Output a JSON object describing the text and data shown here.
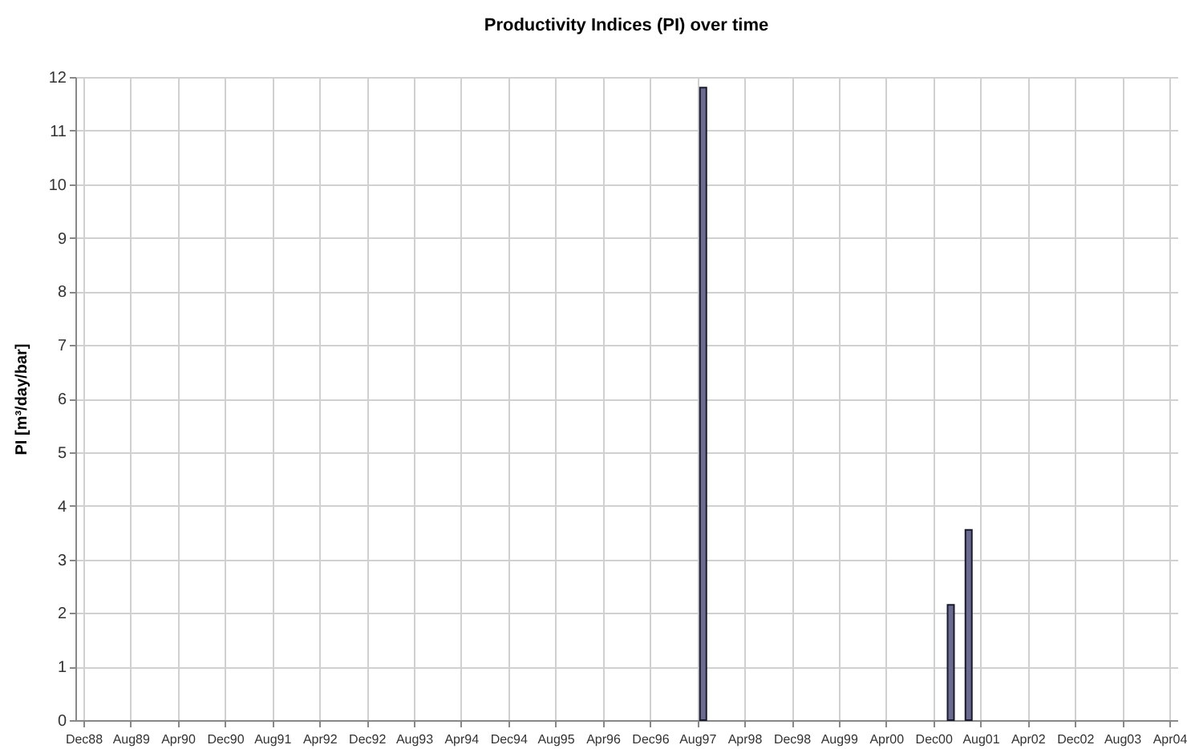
{
  "chart_data": {
    "type": "bar",
    "title": "Productivity Indices (PI) over time",
    "ylabel": "PI [m³/day/bar]",
    "x": [
      "1997-09",
      "2001-03",
      "2001-06"
    ],
    "values": [
      11.8,
      2.15,
      3.55
    ],
    "color": "#6b6b8f",
    "xlim": [
      "1988-12",
      "2004-04"
    ],
    "xticks": [
      {
        "value": "1988-12",
        "label": "Dec88"
      },
      {
        "value": "1989-08",
        "label": "Aug89"
      },
      {
        "value": "1990-04",
        "label": "Apr90"
      },
      {
        "value": "1990-12",
        "label": "Dec90"
      },
      {
        "value": "1991-08",
        "label": "Aug91"
      },
      {
        "value": "1992-04",
        "label": "Apr92"
      },
      {
        "value": "1992-12",
        "label": "Dec92"
      },
      {
        "value": "1993-08",
        "label": "Aug93"
      },
      {
        "value": "1994-04",
        "label": "Apr94"
      },
      {
        "value": "1994-12",
        "label": "Dec94"
      },
      {
        "value": "1995-08",
        "label": "Aug95"
      },
      {
        "value": "1996-04",
        "label": "Apr96"
      },
      {
        "value": "1996-12",
        "label": "Dec96"
      },
      {
        "value": "1997-08",
        "label": "Aug97"
      },
      {
        "value": "1998-04",
        "label": "Apr98"
      },
      {
        "value": "1998-12",
        "label": "Dec98"
      },
      {
        "value": "1999-08",
        "label": "Aug99"
      },
      {
        "value": "2000-04",
        "label": "Apr00"
      },
      {
        "value": "2000-12",
        "label": "Dec00"
      },
      {
        "value": "2001-08",
        "label": "Aug01"
      },
      {
        "value": "2002-04",
        "label": "Apr02"
      },
      {
        "value": "2002-12",
        "label": "Dec02"
      },
      {
        "value": "2003-08",
        "label": "Aug03"
      },
      {
        "value": "2004-04",
        "label": "Apr04"
      }
    ],
    "ylim": [
      0,
      12
    ],
    "yticks": [
      0,
      1,
      2,
      3,
      4,
      5,
      6,
      7,
      8,
      9,
      10,
      11,
      12
    ],
    "grid": true
  }
}
